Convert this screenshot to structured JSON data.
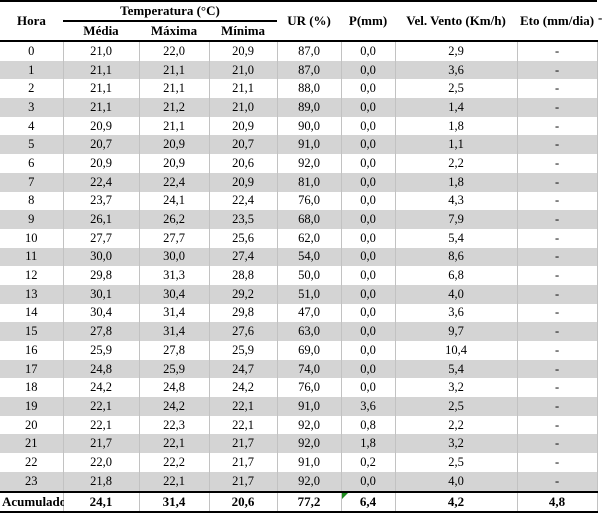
{
  "table": {
    "header": {
      "hora": "Hora",
      "temperatura_group": "Temperatura (°C)",
      "temp_subcols": [
        "Média",
        "Máxima",
        "Mínima"
      ],
      "ur": "UR (%)",
      "p": "P(mm)",
      "vento": "Vel. Vento (Km/h)",
      "eto": "Eto (mm/dia)"
    },
    "rows": [
      [
        "0",
        "21,0",
        "22,0",
        "20,9",
        "87,0",
        "0,0",
        "2,9",
        "-"
      ],
      [
        "1",
        "21,1",
        "21,1",
        "21,0",
        "87,0",
        "0,0",
        "3,6",
        "-"
      ],
      [
        "2",
        "21,1",
        "21,1",
        "21,1",
        "88,0",
        "0,0",
        "2,5",
        "-"
      ],
      [
        "3",
        "21,1",
        "21,2",
        "21,0",
        "89,0",
        "0,0",
        "1,4",
        "-"
      ],
      [
        "4",
        "20,9",
        "21,1",
        "20,9",
        "90,0",
        "0,0",
        "1,8",
        "-"
      ],
      [
        "5",
        "20,7",
        "20,9",
        "20,7",
        "91,0",
        "0,0",
        "1,1",
        "-"
      ],
      [
        "6",
        "20,9",
        "20,9",
        "20,6",
        "92,0",
        "0,0",
        "2,2",
        "-"
      ],
      [
        "7",
        "22,4",
        "22,4",
        "20,9",
        "81,0",
        "0,0",
        "1,8",
        "-"
      ],
      [
        "8",
        "23,7",
        "24,1",
        "22,4",
        "76,0",
        "0,0",
        "4,3",
        "-"
      ],
      [
        "9",
        "26,1",
        "26,2",
        "23,5",
        "68,0",
        "0,0",
        "7,9",
        "-"
      ],
      [
        "10",
        "27,7",
        "27,7",
        "25,6",
        "62,0",
        "0,0",
        "5,4",
        "-"
      ],
      [
        "11",
        "30,0",
        "30,0",
        "27,4",
        "54,0",
        "0,0",
        "8,6",
        "-"
      ],
      [
        "12",
        "29,8",
        "31,3",
        "28,8",
        "50,0",
        "0,0",
        "6,8",
        "-"
      ],
      [
        "13",
        "30,1",
        "30,4",
        "29,2",
        "51,0",
        "0,0",
        "4,0",
        "-"
      ],
      [
        "14",
        "30,4",
        "31,4",
        "29,8",
        "47,0",
        "0,0",
        "3,6",
        "-"
      ],
      [
        "15",
        "27,8",
        "31,4",
        "27,6",
        "63,0",
        "0,0",
        "9,7",
        "-"
      ],
      [
        "16",
        "25,9",
        "27,8",
        "25,9",
        "69,0",
        "0,0",
        "10,4",
        "-"
      ],
      [
        "17",
        "24,8",
        "25,9",
        "24,7",
        "74,0",
        "0,0",
        "5,4",
        "-"
      ],
      [
        "18",
        "24,2",
        "24,8",
        "24,2",
        "76,0",
        "0,0",
        "3,2",
        "-"
      ],
      [
        "19",
        "22,1",
        "24,2",
        "22,1",
        "91,0",
        "3,6",
        "2,5",
        "-"
      ],
      [
        "20",
        "22,1",
        "22,3",
        "22,1",
        "92,0",
        "0,8",
        "2,2",
        "-"
      ],
      [
        "21",
        "21,7",
        "22,1",
        "21,7",
        "92,0",
        "1,8",
        "3,2",
        "-"
      ],
      [
        "22",
        "22,0",
        "22,2",
        "21,7",
        "91,0",
        "0,2",
        "2,5",
        "-"
      ],
      [
        "23",
        "21,8",
        "22,1",
        "21,7",
        "92,0",
        "0,0",
        "4,0",
        "-"
      ]
    ],
    "footer": [
      "Acumulado",
      "24,1",
      "31,4",
      "20,6",
      "77,2",
      "6,4",
      "4,2",
      "4,8"
    ],
    "footer_flag_col": 5,
    "clipped_next_column_text": "-"
  },
  "colors": {
    "row_alt": "#d4d4d4",
    "gridline": "#c2c2c2",
    "border": "#000000",
    "flag_green": "#1e8b1e"
  }
}
